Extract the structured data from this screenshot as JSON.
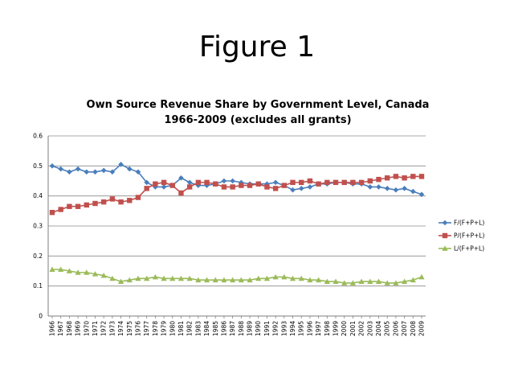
{
  "slide": {
    "title": "Figure 1"
  },
  "chart_data": {
    "type": "line",
    "title": "Own Source Revenue Share by Government Level, Canada",
    "subtitle": "1966-2009 (excludes all grants)",
    "xlabel": "",
    "ylabel": "",
    "ylim": [
      0,
      0.6
    ],
    "yticks": [
      "0",
      "0.1",
      "0.2",
      "0.3",
      "0.4",
      "0.5",
      "0.6"
    ],
    "grid": true,
    "legend_position": "right",
    "x": [
      "1966",
      "1967",
      "1968",
      "1969",
      "1970",
      "1971",
      "1972",
      "1973",
      "1974",
      "1975",
      "1976",
      "1977",
      "1978",
      "1979",
      "1980",
      "1981",
      "1982",
      "1983",
      "1984",
      "1985",
      "1986",
      "1987",
      "1988",
      "1989",
      "1990",
      "1991",
      "1992",
      "1993",
      "1994",
      "1995",
      "1996",
      "1997",
      "1998",
      "1999",
      "2000",
      "2001",
      "2002",
      "2003",
      "2004",
      "2005",
      "2006",
      "2007",
      "2008",
      "2009"
    ],
    "series": [
      {
        "name": "F/(F+P+L)",
        "color": "#4a7ebb",
        "marker": "diamond",
        "values": [
          0.5,
          0.49,
          0.48,
          0.49,
          0.48,
          0.48,
          0.485,
          0.48,
          0.505,
          0.49,
          0.48,
          0.445,
          0.43,
          0.43,
          0.435,
          0.46,
          0.445,
          0.435,
          0.435,
          0.44,
          0.45,
          0.45,
          0.445,
          0.44,
          0.44,
          0.44,
          0.445,
          0.435,
          0.42,
          0.425,
          0.43,
          0.44,
          0.44,
          0.445,
          0.445,
          0.44,
          0.44,
          0.43,
          0.43,
          0.425,
          0.42,
          0.425,
          0.415,
          0.405
        ]
      },
      {
        "name": "P/(F+P+L)",
        "color": "#c0504d",
        "marker": "square",
        "values": [
          0.345,
          0.355,
          0.365,
          0.365,
          0.37,
          0.375,
          0.38,
          0.39,
          0.38,
          0.385,
          0.395,
          0.425,
          0.44,
          0.445,
          0.435,
          0.41,
          0.43,
          0.445,
          0.445,
          0.44,
          0.43,
          0.43,
          0.435,
          0.435,
          0.44,
          0.43,
          0.425,
          0.435,
          0.445,
          0.445,
          0.45,
          0.44,
          0.445,
          0.445,
          0.445,
          0.445,
          0.445,
          0.45,
          0.455,
          0.46,
          0.465,
          0.46,
          0.465,
          0.465
        ]
      },
      {
        "name": "L/(F+P+L)",
        "color": "#9bbb59",
        "marker": "triangle",
        "values": [
          0.155,
          0.155,
          0.15,
          0.145,
          0.145,
          0.14,
          0.135,
          0.125,
          0.115,
          0.12,
          0.125,
          0.125,
          0.13,
          0.125,
          0.125,
          0.125,
          0.125,
          0.12,
          0.12,
          0.12,
          0.12,
          0.12,
          0.12,
          0.12,
          0.125,
          0.125,
          0.13,
          0.13,
          0.125,
          0.125,
          0.12,
          0.12,
          0.115,
          0.115,
          0.11,
          0.11,
          0.115,
          0.115,
          0.115,
          0.11,
          0.11,
          0.115,
          0.12,
          0.13
        ]
      }
    ]
  }
}
